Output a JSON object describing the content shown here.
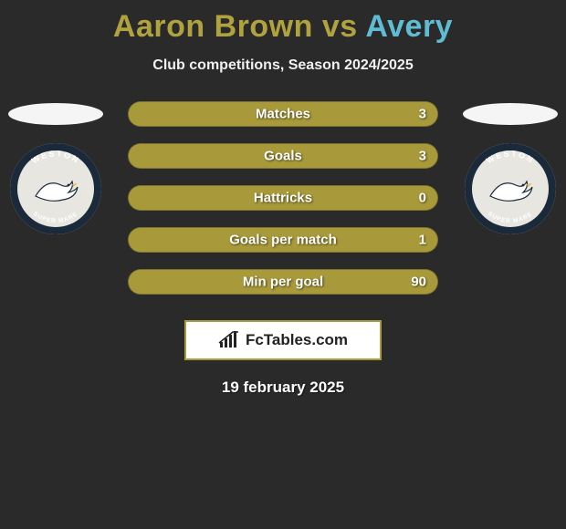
{
  "colors": {
    "background": "#2a2a2a",
    "title_p1": "#b0a23e",
    "title_p2": "#5fbcd3",
    "bar_track": "#a89a3a",
    "bar_left_fill": "#6b6b6b",
    "bar_right_fill": "#a89a3a",
    "brand_border": "#a89a3a",
    "badge_ring": "#1b2a3a",
    "badge_field": "#e8e6e0"
  },
  "title": {
    "p1": "Aaron Brown",
    "vs": "vs",
    "p2": "Avery"
  },
  "subtitle": "Club competitions, Season 2024/2025",
  "club_text": {
    "top": "WESTON",
    "bottom": "SUPER MARE"
  },
  "bars": [
    {
      "label": "Matches",
      "left": "",
      "right": "3",
      "left_pct": 0,
      "right_pct": 100
    },
    {
      "label": "Goals",
      "left": "",
      "right": "3",
      "left_pct": 0,
      "right_pct": 100
    },
    {
      "label": "Hattricks",
      "left": "",
      "right": "0",
      "left_pct": 0,
      "right_pct": 100
    },
    {
      "label": "Goals per match",
      "left": "",
      "right": "1",
      "left_pct": 0,
      "right_pct": 100
    },
    {
      "label": "Min per goal",
      "left": "",
      "right": "90",
      "left_pct": 0,
      "right_pct": 100
    }
  ],
  "brand": "FcTables.com",
  "date": "19 february 2025"
}
